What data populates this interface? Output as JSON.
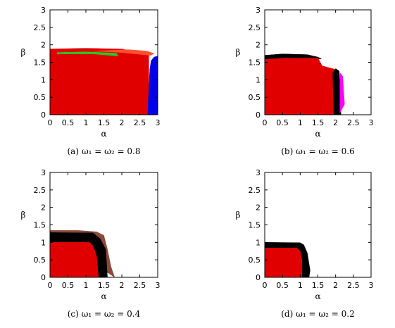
{
  "chart_data": [
    {
      "type": "area",
      "panel": "a",
      "caption": "(a) ω₁ = ω₂ = 0.8",
      "xlabel": "α",
      "ylabel": "β",
      "xlim": [
        0,
        3
      ],
      "ylim": [
        0,
        3
      ],
      "xticks": [
        "0",
        "0.5",
        "1",
        "1.5",
        "2",
        "2.5",
        "3"
      ],
      "yticks": [
        "0",
        "0.5",
        "1",
        "1.5",
        "2",
        "2.5",
        "3"
      ],
      "grid": false,
      "regions": [
        {
          "color": "#e00000",
          "polygon": [
            [
              0,
              0
            ],
            [
              0,
              1.88
            ],
            [
              1.0,
              1.9
            ],
            [
              2.0,
              1.88
            ],
            [
              2.5,
              1.78
            ],
            [
              2.75,
              1.7
            ],
            [
              2.75,
              0
            ]
          ]
        },
        {
          "color": "#ff5030",
          "polygon": [
            [
              1.2,
              1.82
            ],
            [
              2.2,
              1.86
            ],
            [
              2.7,
              1.82
            ],
            [
              2.9,
              1.75
            ],
            [
              2.8,
              1.7
            ],
            [
              2.0,
              1.78
            ]
          ]
        },
        {
          "color": "#28c828",
          "polygon": [
            [
              0.2,
              1.78
            ],
            [
              1.0,
              1.8
            ],
            [
              1.85,
              1.76
            ],
            [
              1.9,
              1.68
            ],
            [
              1.2,
              1.74
            ],
            [
              0.2,
              1.74
            ]
          ]
        },
        {
          "color": "#0000e6",
          "polygon": [
            [
              2.72,
              0
            ],
            [
              2.78,
              1.3
            ],
            [
              2.82,
              1.55
            ],
            [
              2.9,
              1.65
            ],
            [
              3.0,
              1.68
            ],
            [
              3.0,
              0
            ]
          ]
        }
      ]
    },
    {
      "type": "area",
      "panel": "b",
      "caption": "(b) ω₁ = ω₂ = 0.6",
      "xlabel": "α",
      "ylabel": "β",
      "xlim": [
        0,
        3
      ],
      "ylim": [
        0,
        3
      ],
      "xticks": [
        "0",
        "0.5",
        "1",
        "1.5",
        "2",
        "2.5",
        "3"
      ],
      "yticks": [
        "0",
        "0.5",
        "1",
        "1.5",
        "2",
        "2.5",
        "3"
      ],
      "grid": false,
      "regions": [
        {
          "color": "#000000",
          "polygon": [
            [
              0,
              1.55
            ],
            [
              0,
              1.7
            ],
            [
              0.5,
              1.74
            ],
            [
              1.2,
              1.72
            ],
            [
              1.5,
              1.65
            ],
            [
              1.6,
              1.6
            ],
            [
              1.2,
              1.55
            ],
            [
              0.3,
              1.55
            ]
          ]
        },
        {
          "color": "#e00000",
          "polygon": [
            [
              0,
              0
            ],
            [
              0,
              1.58
            ],
            [
              0.5,
              1.62
            ],
            [
              1.5,
              1.62
            ],
            [
              1.62,
              1.4
            ],
            [
              1.8,
              1.35
            ],
            [
              1.98,
              1.3
            ],
            [
              1.98,
              0
            ]
          ]
        },
        {
          "color": "#000000",
          "polygon": [
            [
              1.95,
              0
            ],
            [
              1.92,
              1.2
            ],
            [
              2.0,
              1.32
            ],
            [
              2.1,
              1.25
            ],
            [
              2.15,
              0
            ]
          ]
        },
        {
          "color": "#ff00ff",
          "polygon": [
            [
              2.12,
              0.05
            ],
            [
              2.12,
              1.2
            ],
            [
              2.2,
              1.1
            ],
            [
              2.25,
              0.3
            ]
          ]
        }
      ]
    },
    {
      "type": "area",
      "panel": "c",
      "caption": "(c) ω₁ = ω₂ = 0.4",
      "xlabel": "α",
      "ylabel": "β",
      "xlim": [
        0,
        3
      ],
      "ylim": [
        0,
        3
      ],
      "xticks": [
        "0",
        "0.5",
        "1",
        "1.5",
        "2",
        "2.5",
        "3"
      ],
      "yticks": [
        "0",
        "0.5",
        "1",
        "1.5",
        "2",
        "2.5",
        "3"
      ],
      "grid": false,
      "regions": [
        {
          "color": "#8b4a3a",
          "polygon": [
            [
              0,
              1.25
            ],
            [
              0,
              1.34
            ],
            [
              0.8,
              1.34
            ],
            [
              1.3,
              1.3
            ],
            [
              1.5,
              1.2
            ],
            [
              1.6,
              0.8
            ],
            [
              1.7,
              0.3
            ],
            [
              1.8,
              0
            ]
          ]
        },
        {
          "color": "#000000",
          "polygon": [
            [
              0,
              0
            ],
            [
              0,
              1.28
            ],
            [
              1.2,
              1.27
            ],
            [
              1.4,
              1.1
            ],
            [
              1.55,
              0.8
            ],
            [
              1.6,
              0
            ]
          ]
        },
        {
          "color": "#e00000",
          "polygon": [
            [
              0,
              0
            ],
            [
              0,
              1.0
            ],
            [
              1.1,
              1.0
            ],
            [
              1.2,
              0.9
            ],
            [
              1.3,
              0.6
            ],
            [
              1.35,
              0
            ]
          ]
        }
      ]
    },
    {
      "type": "area",
      "panel": "d",
      "caption": "(d) ω₁ = ω₂ = 0.2",
      "xlabel": "α",
      "ylabel": "β",
      "xlim": [
        0,
        3
      ],
      "ylim": [
        0,
        3
      ],
      "xticks": [
        "0",
        "0.5",
        "1",
        "1.5",
        "2",
        "2.5",
        "3"
      ],
      "yticks": [
        "0",
        "0.5",
        "1",
        "1.5",
        "2",
        "2.5",
        "3"
      ],
      "grid": false,
      "regions": [
        {
          "color": "#000000",
          "polygon": [
            [
              0,
              0
            ],
            [
              0,
              1.0
            ],
            [
              1.0,
              0.99
            ],
            [
              1.1,
              0.93
            ],
            [
              1.2,
              0.7
            ],
            [
              1.28,
              0.2
            ],
            [
              1.25,
              0
            ]
          ]
        },
        {
          "color": "#e00000",
          "polygon": [
            [
              0,
              0
            ],
            [
              0,
              0.84
            ],
            [
              0.9,
              0.84
            ],
            [
              1.0,
              0.75
            ],
            [
              1.05,
              0.5
            ],
            [
              1.05,
              0
            ]
          ]
        }
      ]
    }
  ]
}
